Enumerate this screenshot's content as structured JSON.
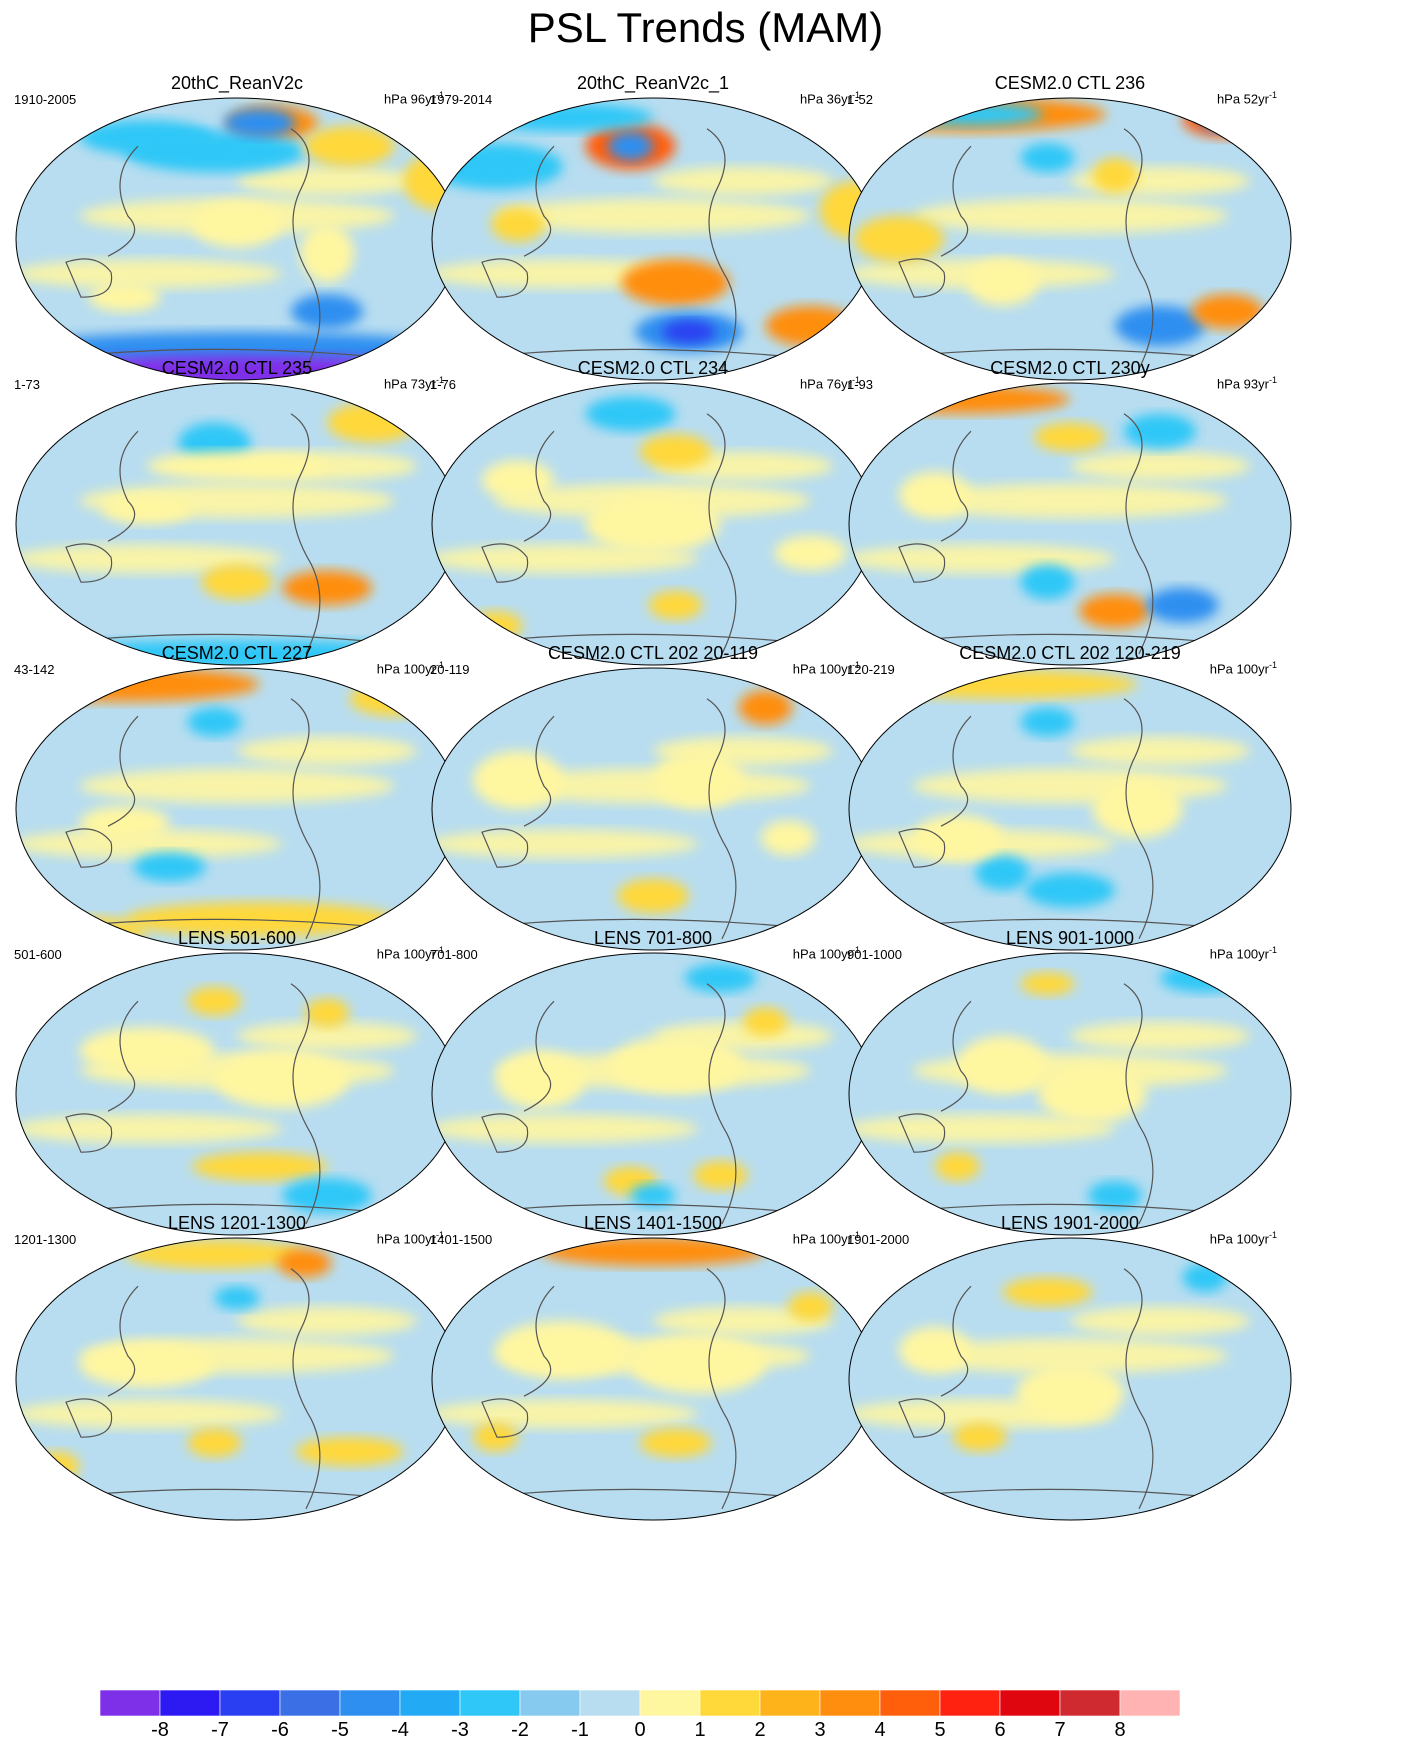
{
  "title": "PSL Trends (MAM)",
  "colorbar": {
    "colors": [
      "#7e2fe8",
      "#2d1af2",
      "#2a3ff2",
      "#3a6fe6",
      "#2f8ff0",
      "#22aaf5",
      "#2ec7f7",
      "#86caef",
      "#b8ddf0",
      "#fff6a0",
      "#ffd83a",
      "#ffb31a",
      "#ff8e0f",
      "#ff5f0a",
      "#ff2210",
      "#e00610",
      "#cf2a30",
      "#ffb3b3"
    ],
    "tick_labels": [
      "-8",
      "-7",
      "-6",
      "-5",
      "-4",
      "-3",
      "-2",
      "-1",
      "0",
      "1",
      "2",
      "3",
      "4",
      "5",
      "6",
      "7",
      "8"
    ]
  },
  "panels": [
    {
      "title": "20thC_ReanV2c",
      "period": "1910-2005",
      "units": "hPa 96yr",
      "units_exp": "-1",
      "blobs": [
        [
          0.58,
          0.1,
          0.1,
          0.06,
          3
        ],
        [
          0.45,
          0.2,
          0.2,
          0.07,
          5
        ],
        [
          0.55,
          0.1,
          0.08,
          0.05,
          6
        ],
        [
          0.95,
          0.3,
          0.08,
          0.1,
          2
        ],
        [
          0.75,
          0.18,
          0.1,
          0.07,
          2
        ],
        [
          0.3,
          0.15,
          0.15,
          0.06,
          5
        ],
        [
          0.5,
          0.45,
          0.1,
          0.08,
          1
        ],
        [
          0.25,
          0.7,
          0.08,
          0.05,
          1
        ],
        [
          0.7,
          0.75,
          0.08,
          0.06,
          6
        ],
        [
          0.7,
          0.55,
          0.06,
          0.1,
          1
        ],
        [
          0.5,
          0.88,
          0.5,
          0.06,
          6
        ],
        [
          0.5,
          0.96,
          0.5,
          0.06,
          9
        ]
      ]
    },
    {
      "title": "20thC_ReanV2c_1",
      "period": "1979-2014",
      "units": "hPa 36yr",
      "units_exp": "-1",
      "blobs": [
        [
          0.45,
          0.18,
          0.1,
          0.08,
          4
        ],
        [
          0.45,
          0.18,
          0.05,
          0.05,
          6
        ],
        [
          0.3,
          0.08,
          0.2,
          0.05,
          5
        ],
        [
          0.15,
          0.25,
          0.15,
          0.08,
          5
        ],
        [
          0.2,
          0.45,
          0.06,
          0.06,
          2
        ],
        [
          0.55,
          0.65,
          0.12,
          0.08,
          3
        ],
        [
          0.85,
          0.8,
          0.1,
          0.07,
          3
        ],
        [
          0.58,
          0.82,
          0.12,
          0.07,
          6
        ],
        [
          0.58,
          0.82,
          0.06,
          0.04,
          7
        ],
        [
          0.95,
          0.4,
          0.08,
          0.1,
          2
        ]
      ]
    },
    {
      "title": "CESM2.0 CTL 236",
      "period": "1-52",
      "units": "hPa 52yr",
      "units_exp": "-1",
      "blobs": [
        [
          0.28,
          0.07,
          0.3,
          0.06,
          3
        ],
        [
          0.28,
          0.07,
          0.16,
          0.04,
          5
        ],
        [
          0.85,
          0.09,
          0.1,
          0.06,
          4
        ],
        [
          0.85,
          0.09,
          0.06,
          0.04,
          6
        ],
        [
          0.45,
          0.22,
          0.06,
          0.05,
          5
        ],
        [
          0.6,
          0.28,
          0.05,
          0.06,
          2
        ],
        [
          0.12,
          0.5,
          0.1,
          0.08,
          2
        ],
        [
          0.7,
          0.8,
          0.1,
          0.07,
          6
        ],
        [
          0.85,
          0.75,
          0.08,
          0.06,
          3
        ],
        [
          0.35,
          0.65,
          0.08,
          0.08,
          1
        ]
      ]
    },
    {
      "title": "CESM2.0 CTL 235",
      "period": "1-73",
      "units": "hPa 73yr",
      "units_exp": "-1",
      "blobs": [
        [
          0.45,
          0.22,
          0.08,
          0.07,
          5
        ],
        [
          0.8,
          0.15,
          0.1,
          0.07,
          2
        ],
        [
          0.7,
          0.72,
          0.1,
          0.06,
          3
        ],
        [
          0.5,
          0.7,
          0.08,
          0.06,
          2
        ],
        [
          0.5,
          0.95,
          0.5,
          0.05,
          5
        ],
        [
          0.3,
          0.45,
          0.1,
          0.05,
          1
        ],
        [
          0.5,
          0.3,
          0.2,
          0.05,
          1
        ]
      ]
    },
    {
      "title": "CESM2.0 CTL 234",
      "period": "1-76",
      "units": "hPa 76yr",
      "units_exp": "-1",
      "blobs": [
        [
          0.45,
          0.12,
          0.1,
          0.06,
          5
        ],
        [
          0.55,
          0.25,
          0.08,
          0.06,
          2
        ],
        [
          0.2,
          0.35,
          0.08,
          0.07,
          1
        ],
        [
          0.5,
          0.5,
          0.15,
          0.1,
          1
        ],
        [
          0.15,
          0.85,
          0.06,
          0.05,
          2
        ],
        [
          0.55,
          0.78,
          0.06,
          0.05,
          2
        ],
        [
          0.85,
          0.6,
          0.08,
          0.06,
          1
        ]
      ]
    },
    {
      "title": "CESM2.0 CTL 230y",
      "period": "1-93",
      "units": "hPa 93yr",
      "units_exp": "-1",
      "blobs": [
        [
          0.25,
          0.07,
          0.25,
          0.05,
          3
        ],
        [
          0.7,
          0.18,
          0.08,
          0.06,
          5
        ],
        [
          0.5,
          0.2,
          0.08,
          0.05,
          2
        ],
        [
          0.45,
          0.7,
          0.06,
          0.06,
          5
        ],
        [
          0.6,
          0.8,
          0.08,
          0.06,
          3
        ],
        [
          0.75,
          0.78,
          0.08,
          0.06,
          6
        ],
        [
          0.2,
          0.4,
          0.08,
          0.08,
          1
        ]
      ]
    },
    {
      "title": "CESM2.0 CTL 227",
      "period": "43-142",
      "units": "hPa 100yr",
      "units_exp": "-1",
      "blobs": [
        [
          0.25,
          0.07,
          0.3,
          0.06,
          3
        ],
        [
          0.85,
          0.12,
          0.1,
          0.06,
          2
        ],
        [
          0.45,
          0.2,
          0.06,
          0.05,
          5
        ],
        [
          0.55,
          0.88,
          0.3,
          0.06,
          2
        ],
        [
          0.15,
          0.92,
          0.15,
          0.05,
          2
        ],
        [
          0.35,
          0.7,
          0.08,
          0.05,
          5
        ],
        [
          0.25,
          0.55,
          0.1,
          0.06,
          1
        ]
      ]
    },
    {
      "title": "CESM2.0 CTL 202 20-119",
      "period": "20-119",
      "units": "hPa 100yr",
      "units_exp": "-1",
      "blobs": [
        [
          0.75,
          0.15,
          0.06,
          0.06,
          3
        ],
        [
          0.5,
          0.8,
          0.08,
          0.06,
          2
        ],
        [
          0.2,
          0.4,
          0.1,
          0.1,
          1
        ],
        [
          0.6,
          0.4,
          0.1,
          0.1,
          1
        ],
        [
          0.8,
          0.6,
          0.06,
          0.06,
          1
        ]
      ]
    },
    {
      "title": "CESM2.0 CTL 202 120-219",
      "period": "120-219",
      "units": "hPa 100yr",
      "units_exp": "-1",
      "blobs": [
        [
          0.35,
          0.07,
          0.3,
          0.05,
          2
        ],
        [
          0.45,
          0.2,
          0.06,
          0.05,
          5
        ],
        [
          0.5,
          0.78,
          0.1,
          0.06,
          5
        ],
        [
          0.35,
          0.72,
          0.06,
          0.06,
          5
        ],
        [
          0.25,
          0.6,
          0.1,
          0.08,
          1
        ],
        [
          0.65,
          0.5,
          0.1,
          0.1,
          1
        ]
      ]
    },
    {
      "title": "LENS 501-600",
      "period": "501-600",
      "units": "hPa 100yr",
      "units_exp": "-1",
      "blobs": [
        [
          0.45,
          0.18,
          0.06,
          0.05,
          2
        ],
        [
          0.7,
          0.22,
          0.05,
          0.05,
          2
        ],
        [
          0.55,
          0.75,
          0.15,
          0.05,
          2
        ],
        [
          0.7,
          0.85,
          0.1,
          0.06,
          5
        ],
        [
          0.3,
          0.35,
          0.15,
          0.08,
          1
        ],
        [
          0.6,
          0.45,
          0.15,
          0.1,
          1
        ]
      ]
    },
    {
      "title": "LENS 701-800",
      "period": "701-800",
      "units": "hPa 100yr",
      "units_exp": "-1",
      "blobs": [
        [
          0.65,
          0.1,
          0.08,
          0.05,
          5
        ],
        [
          0.75,
          0.25,
          0.05,
          0.05,
          2
        ],
        [
          0.45,
          0.8,
          0.06,
          0.05,
          2
        ],
        [
          0.65,
          0.78,
          0.06,
          0.05,
          2
        ],
        [
          0.5,
          0.85,
          0.05,
          0.04,
          5
        ],
        [
          0.25,
          0.45,
          0.1,
          0.1,
          1
        ],
        [
          0.55,
          0.4,
          0.15,
          0.1,
          1
        ]
      ]
    },
    {
      "title": "LENS 901-1000",
      "period": "901-1000",
      "units": "hPa 100yr",
      "units_exp": "-1",
      "blobs": [
        [
          0.8,
          0.1,
          0.1,
          0.05,
          5
        ],
        [
          0.45,
          0.12,
          0.06,
          0.04,
          2
        ],
        [
          0.6,
          0.85,
          0.06,
          0.05,
          5
        ],
        [
          0.25,
          0.75,
          0.05,
          0.05,
          2
        ],
        [
          0.35,
          0.4,
          0.1,
          0.1,
          1
        ],
        [
          0.55,
          0.5,
          0.12,
          0.1,
          1
        ]
      ]
    },
    {
      "title": "LENS 1201-1300",
      "period": "1201-1300",
      "units": "hPa 100yr",
      "units_exp": "-1",
      "blobs": [
        [
          0.45,
          0.07,
          0.2,
          0.05,
          2
        ],
        [
          0.65,
          0.1,
          0.06,
          0.05,
          3
        ],
        [
          0.5,
          0.22,
          0.05,
          0.04,
          5
        ],
        [
          0.75,
          0.75,
          0.12,
          0.05,
          2
        ],
        [
          0.45,
          0.72,
          0.06,
          0.05,
          2
        ],
        [
          0.1,
          0.8,
          0.05,
          0.05,
          2
        ],
        [
          0.3,
          0.45,
          0.15,
          0.08,
          1
        ]
      ]
    },
    {
      "title": "LENS 1401-1500",
      "period": "1401-1500",
      "units": "hPa 100yr",
      "units_exp": "-1",
      "blobs": [
        [
          0.5,
          0.06,
          0.25,
          0.05,
          3
        ],
        [
          0.85,
          0.25,
          0.05,
          0.05,
          2
        ],
        [
          0.15,
          0.7,
          0.05,
          0.05,
          2
        ],
        [
          0.55,
          0.72,
          0.08,
          0.05,
          2
        ],
        [
          0.3,
          0.4,
          0.15,
          0.1,
          1
        ],
        [
          0.6,
          0.45,
          0.15,
          0.1,
          1
        ]
      ]
    },
    {
      "title": "LENS 1901-2000",
      "period": "1901-2000",
      "units": "hPa 100yr",
      "units_exp": "-1",
      "blobs": [
        [
          0.45,
          0.2,
          0.1,
          0.05,
          2
        ],
        [
          0.8,
          0.15,
          0.05,
          0.05,
          5
        ],
        [
          0.3,
          0.7,
          0.06,
          0.05,
          2
        ],
        [
          0.5,
          0.55,
          0.12,
          0.1,
          1
        ],
        [
          0.2,
          0.4,
          0.08,
          0.08,
          1
        ]
      ]
    }
  ]
}
